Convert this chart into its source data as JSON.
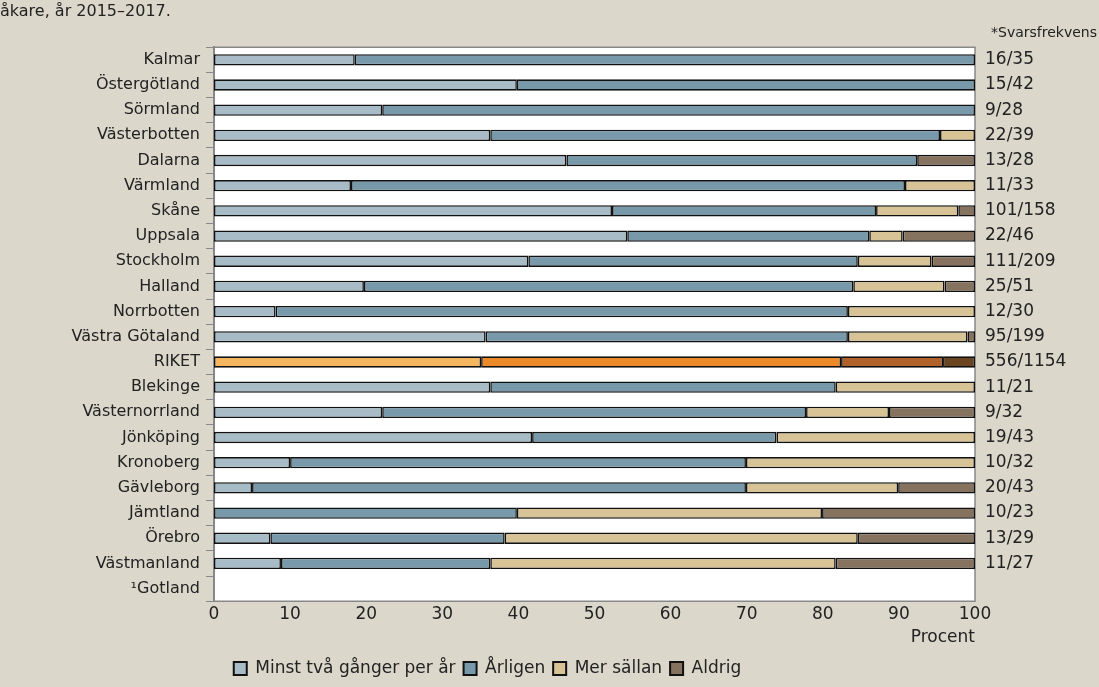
{
  "chart_data": {
    "type": "bar",
    "orientation": "horizontal",
    "stacked": true,
    "title": "åkare, år 2015–2017.",
    "xlabel": "Procent",
    "categories": [
      "Kalmar",
      "Östergötland",
      "Sörmland",
      "Västerbotten",
      "Dalarna",
      "Värmland",
      "Skåne",
      "Uppsala",
      "Stockholm",
      "Halland",
      "Norrbotten",
      "Västra Götaland",
      "RIKET",
      "Blekinge",
      "Västernorrland",
      "Jönköping",
      "Kronoberg",
      "Gävleborg",
      "Jämtland",
      "Örebro",
      "Västmanland",
      "¹Gotland"
    ],
    "series": [
      {
        "name": "Minst två gånger per år",
        "color": "#a7bcc6",
        "colors": [
          "#a7bcc6",
          "#a7bcc6",
          "#a7bcc6",
          "#a7bcc6",
          "#a7bcc6",
          "#a7bcc6",
          "#a7bcc6",
          "#a7bcc6",
          "#a7bcc6",
          "#a7bcc6",
          "#a7bcc6",
          "#a7bcc6",
          "#f4b760",
          "#a7bcc6",
          "#a7bcc6",
          "#a7bcc6",
          "#a7bcc6",
          "#a7bcc6",
          "#a7bcc6",
          "#a7bcc6",
          "#a7bcc6",
          "#a7bcc6"
        ],
        "values": [
          18.5,
          39.8,
          22.1,
          36.3,
          46.3,
          18,
          52.3,
          54.3,
          41.3,
          19.7,
          8.1,
          35.7,
          35.1,
          36.3,
          22.1,
          41.8,
          10,
          5,
          0,
          7.4,
          8.8,
          null
        ]
      },
      {
        "name": "Årligen",
        "color": "#7799aa",
        "colors": [
          "#7799aa",
          "#7799aa",
          "#7799aa",
          "#7799aa",
          "#7799aa",
          "#7799aa",
          "#7799aa",
          "#7799aa",
          "#7799aa",
          "#7799aa",
          "#7799aa",
          "#7799aa",
          "#ec8a2a",
          "#7799aa",
          "#7799aa",
          "#7799aa",
          "#7799aa",
          "#7799aa",
          "#7799aa",
          "#7799aa",
          "#7799aa",
          "#7799aa"
        ],
        "values": [
          81.5,
          60.2,
          77.9,
          59.1,
          46.1,
          72.8,
          34.7,
          31.8,
          43.3,
          64.3,
          75.2,
          47.6,
          47.3,
          45.4,
          55.7,
          32.1,
          59.9,
          64.9,
          39.8,
          30.8,
          27.5,
          null
        ]
      },
      {
        "name": "Mer sällan",
        "color": "#d8c396",
        "colors": [
          "#d8c396",
          "#d8c396",
          "#d8c396",
          "#d8c396",
          "#d8c396",
          "#d8c396",
          "#d8c396",
          "#d8c396",
          "#d8c396",
          "#d8c396",
          "#d8c396",
          "#d8c396",
          "#b0622a",
          "#d8c396",
          "#d8c396",
          "#d8c396",
          "#d8c396",
          "#d8c396",
          "#d8c396",
          "#d8c396",
          "#d8c396",
          "#d8c396"
        ],
        "values": [
          0,
          0,
          0,
          4.6,
          0,
          9.2,
          10.8,
          4.4,
          9.7,
          12,
          16.7,
          15.7,
          13.4,
          18.3,
          10.9,
          26.1,
          30.1,
          20,
          40.1,
          46.4,
          45.4,
          null
        ]
      },
      {
        "name": "Aldrig",
        "color": "#85725f",
        "colors": [
          "#85725f",
          "#85725f",
          "#85725f",
          "#85725f",
          "#85725f",
          "#85725f",
          "#85725f",
          "#85725f",
          "#85725f",
          "#85725f",
          "#85725f",
          "#85725f",
          "#6b4420",
          "#85725f",
          "#85725f",
          "#85725f",
          "#85725f",
          "#85725f",
          "#85725f",
          "#85725f",
          "#85725f",
          "#85725f"
        ],
        "values": [
          0,
          0,
          0,
          0,
          7.6,
          0,
          2.2,
          9.5,
          5.7,
          4,
          0,
          1,
          4.2,
          0,
          11.3,
          0,
          0,
          10.1,
          20.1,
          15.4,
          18.3,
          null
        ]
      }
    ],
    "xlim": [
      0,
      100
    ],
    "xticks": [
      0,
      10,
      20,
      30,
      40,
      50,
      60,
      70,
      80,
      90,
      100
    ],
    "grid": false,
    "legend": "bottom",
    "annotations": [
      "*Svarsfrekvens",
      "16/35",
      "15/42",
      "9/28",
      "22/39",
      "13/28",
      "11/33",
      "101/158",
      "22/46",
      "111/209",
      "25/51",
      "12/30",
      "95/199",
      "556/1154",
      "11/21",
      "9/32",
      "19/43",
      "10/32",
      "20/43",
      "10/23",
      "13/29",
      "11/27"
    ]
  }
}
